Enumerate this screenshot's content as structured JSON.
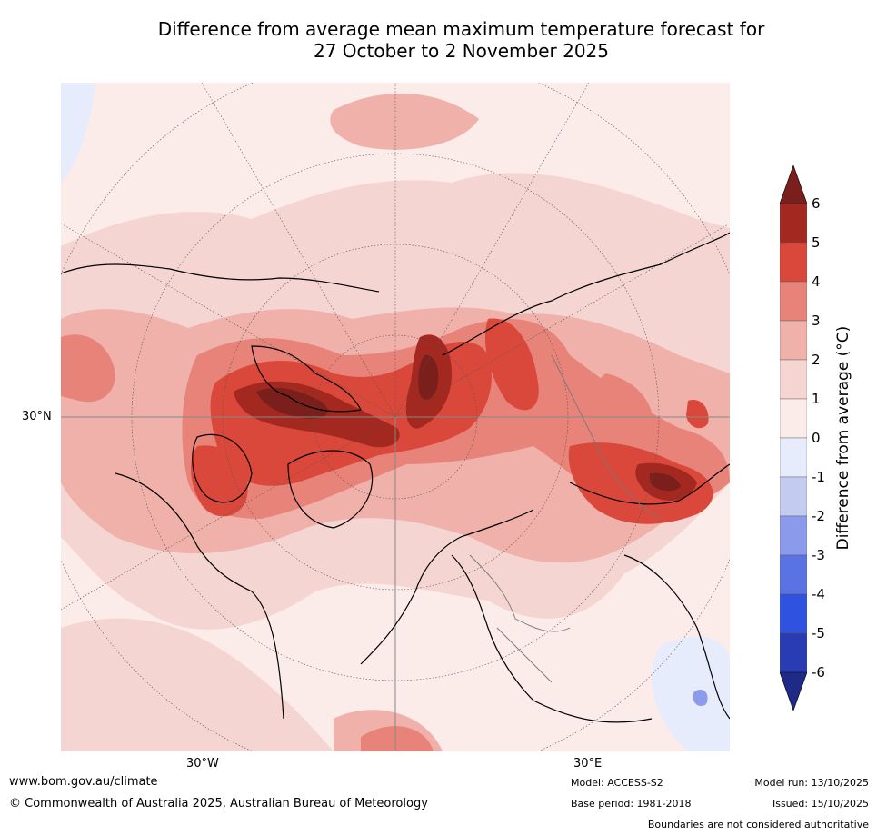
{
  "title": {
    "line1": "Difference from average mean maximum temperature forecast for",
    "line2": "27 October to 2 November 2025"
  },
  "map": {
    "lat_label": "30°N",
    "lon_labels": [
      "30°W",
      "30°E"
    ],
    "palette": {
      "dark_red": "#7a1f1b",
      "red5": "#a3281f",
      "red4": "#d9483b",
      "red3": "#e8837a",
      "red2": "#efb1aa",
      "red1": "#f5d5d1",
      "pale": "#fbece9",
      "blue0": "#e6ecfb",
      "blue1": "#c3cbf1",
      "blue2": "#8c9aeb",
      "blue3": "#5b73e2",
      "blue4": "#2f52e0",
      "blue5": "#2a3cb4",
      "blue6": "#1e2a85"
    }
  },
  "colorbar": {
    "label": "Difference from average ($^\\circ$C)",
    "label_text": "Difference from average (°C)",
    "ticks": [
      "6",
      "5",
      "4",
      "3",
      "2",
      "1",
      "0",
      "-1",
      "-2",
      "-3",
      "-4",
      "-5",
      "-6"
    ],
    "colors": [
      "#a3281f",
      "#d9483b",
      "#e8837a",
      "#efb1aa",
      "#f5d5d1",
      "#fbece9",
      "#e6ecfb",
      "#c3cbf1",
      "#8c9aeb",
      "#5b73e2",
      "#2f52e0",
      "#2a3cb4"
    ],
    "top_arrow_color": "#7a1f1b",
    "bottom_arrow_color": "#1e2a85"
  },
  "footer": {
    "website": "www.bom.gov.au/climate",
    "copyright": "© Commonwealth of Australia 2025, Australian Bureau of Meteorology",
    "model": "Model: ACCESS-S2",
    "base_period": "Base period: 1981-2018",
    "model_run": "Model run: 13/10/2025",
    "issued": "Issued: 15/10/2025",
    "disclaimer": "Boundaries are not considered authoritative"
  }
}
